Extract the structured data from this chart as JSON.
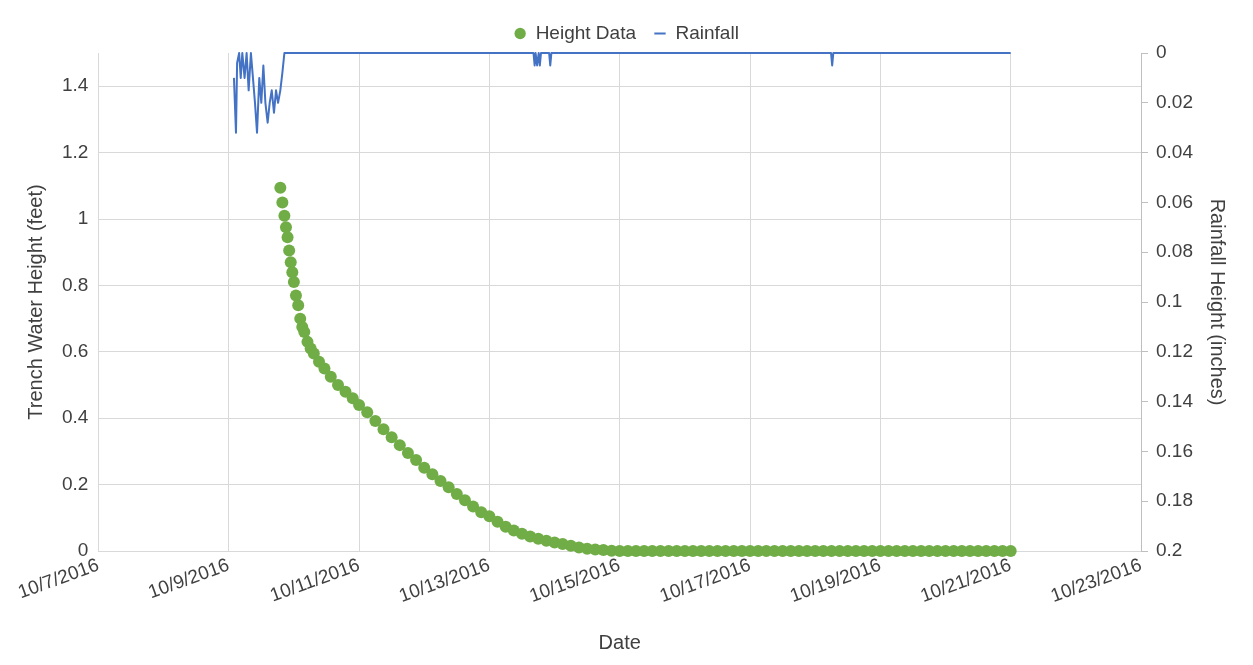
{
  "chart_data": {
    "type": "scatter",
    "xlabel": "Date",
    "ylabel": "Trench Water Height (feet)",
    "y2label": "Rainfall Height (inches)",
    "legend": "top",
    "grid": true,
    "xlim": [
      "2016-10-07",
      "2016-10-23"
    ],
    "xticks": [
      {
        "value": "2016-10-07",
        "label": "10/7/2016"
      },
      {
        "value": "2016-10-09",
        "label": "10/9/2016"
      },
      {
        "value": "2016-10-11",
        "label": "10/11/2016"
      },
      {
        "value": "2016-10-13",
        "label": "10/13/2016"
      },
      {
        "value": "2016-10-15",
        "label": "10/15/2016"
      },
      {
        "value": "2016-10-17",
        "label": "10/17/2016"
      },
      {
        "value": "2016-10-19",
        "label": "10/19/2016"
      },
      {
        "value": "2016-10-21",
        "label": "10/21/2016"
      },
      {
        "value": "2016-10-23",
        "label": "10/23/2016"
      }
    ],
    "ylim": [
      0,
      1.5
    ],
    "yticks": [
      0,
      0.2,
      0.4,
      0.6,
      0.8,
      1,
      1.2,
      1.4
    ],
    "y2lim": [
      0.2,
      0
    ],
    "y2ticks": [
      0,
      0.02,
      0.04,
      0.06,
      0.08,
      0.1,
      0.12,
      0.14,
      0.16,
      0.18,
      0.2
    ],
    "series": [
      {
        "name": "Height Data",
        "marker": "circle",
        "color": "#70ad47",
        "x": [
          "2016-10-09T19:00",
          "2016-10-09T19:45",
          "2016-10-09T20:30",
          "2016-10-09T21:05",
          "2016-10-09T21:40",
          "2016-10-09T22:15",
          "2016-10-09T22:50",
          "2016-10-09T23:25",
          "2016-10-10T00:00",
          "2016-10-10T00:45",
          "2016-10-10T01:35",
          "2016-10-10T02:20",
          "2016-10-10T03:05",
          "2016-10-10T03:50",
          "2016-10-10T05:00",
          "2016-10-10T06:10",
          "2016-10-10T07:20",
          "2016-10-10T09:15",
          "2016-10-10T11:15",
          "2016-10-10T13:35",
          "2016-10-10T16:15",
          "2016-10-10T19:00",
          "2016-10-10T21:40",
          "2016-10-11T00:00",
          "2016-10-11T03:00",
          "2016-10-11T06:00",
          "2016-10-11T09:00",
          "2016-10-11T12:00",
          "2016-10-11T15:00",
          "2016-10-11T18:00",
          "2016-10-11T21:00",
          "2016-10-12T00:00",
          "2016-10-12T03:00",
          "2016-10-12T06:00",
          "2016-10-12T09:00",
          "2016-10-12T12:00",
          "2016-10-12T15:00",
          "2016-10-12T18:00",
          "2016-10-12T21:00",
          "2016-10-13T00:00",
          "2016-10-13T03:00",
          "2016-10-13T06:00",
          "2016-10-13T09:00",
          "2016-10-13T12:00",
          "2016-10-13T15:00",
          "2016-10-13T18:00",
          "2016-10-13T21:00",
          "2016-10-14T00:00",
          "2016-10-14T03:00",
          "2016-10-14T06:00",
          "2016-10-14T09:00",
          "2016-10-14T12:00",
          "2016-10-14T15:00",
          "2016-10-14T18:00",
          "2016-10-14T21:00",
          "2016-10-15T00:00",
          "2016-10-15T03:00",
          "2016-10-15T06:00",
          "2016-10-15T09:00",
          "2016-10-15T12:00",
          "2016-10-15T15:00",
          "2016-10-15T18:00",
          "2016-10-15T21:00",
          "2016-10-16T00:00",
          "2016-10-16T03:00",
          "2016-10-16T06:00",
          "2016-10-16T09:00",
          "2016-10-16T12:00",
          "2016-10-16T15:00",
          "2016-10-16T18:00",
          "2016-10-16T21:00",
          "2016-10-17T00:00",
          "2016-10-17T03:00",
          "2016-10-17T06:00",
          "2016-10-17T09:00",
          "2016-10-17T12:00",
          "2016-10-17T15:00",
          "2016-10-17T18:00",
          "2016-10-17T21:00",
          "2016-10-18T00:00",
          "2016-10-18T03:00",
          "2016-10-18T06:00",
          "2016-10-18T09:00",
          "2016-10-18T12:00",
          "2016-10-18T15:00",
          "2016-10-18T18:00",
          "2016-10-18T21:00",
          "2016-10-19T00:00",
          "2016-10-19T03:00",
          "2016-10-19T06:00",
          "2016-10-19T09:00",
          "2016-10-19T12:00",
          "2016-10-19T15:00",
          "2016-10-19T18:00",
          "2016-10-19T21:00",
          "2016-10-20T00:00",
          "2016-10-20T03:00",
          "2016-10-20T06:00",
          "2016-10-20T09:00",
          "2016-10-20T12:00",
          "2016-10-20T15:00",
          "2016-10-20T18:00",
          "2016-10-20T21:00",
          "2016-10-21T00:00"
        ],
        "values": [
          1.094,
          1.05,
          1.01,
          0.975,
          0.945,
          0.905,
          0.87,
          0.84,
          0.81,
          0.77,
          0.74,
          0.7,
          0.675,
          0.66,
          0.63,
          0.61,
          0.595,
          0.57,
          0.55,
          0.525,
          0.5,
          0.48,
          0.46,
          0.44,
          0.418,
          0.392,
          0.367,
          0.343,
          0.319,
          0.295,
          0.274,
          0.251,
          0.231,
          0.211,
          0.192,
          0.172,
          0.153,
          0.134,
          0.117,
          0.105,
          0.088,
          0.073,
          0.062,
          0.052,
          0.044,
          0.037,
          0.031,
          0.026,
          0.021,
          0.016,
          0.011,
          0.007,
          0.005,
          0.003,
          0.001,
          0,
          0,
          0,
          0,
          0,
          0,
          0,
          0,
          0,
          0,
          0,
          0,
          0,
          0,
          0,
          0,
          0,
          0,
          0,
          0,
          0,
          0,
          0,
          0,
          0,
          0,
          0,
          0,
          0,
          0,
          0,
          0,
          0,
          0,
          0,
          0,
          0,
          0,
          0,
          0,
          0,
          0,
          0,
          0,
          0,
          0,
          0,
          0,
          0
        ]
      },
      {
        "name": "Rainfall",
        "type": "line",
        "axis": "y2",
        "marker": "none",
        "color": "#4472c4",
        "x": [
          "2016-10-09T01:55",
          "2016-10-09T02:40",
          "2016-10-09T03:05",
          "2016-10-09T03:50",
          "2016-10-09T04:25",
          "2016-10-09T05:00",
          "2016-10-09T05:50",
          "2016-10-09T06:35",
          "2016-10-09T07:20",
          "2016-10-09T08:10",
          "2016-10-09T08:55",
          "2016-10-09T09:40",
          "2016-10-09T10:25",
          "2016-10-09T11:15",
          "2016-10-09T12:00",
          "2016-10-09T12:45",
          "2016-10-09T13:30",
          "2016-10-09T14:20",
          "2016-10-09T15:05",
          "2016-10-09T15:50",
          "2016-10-09T16:40",
          "2016-10-09T17:25",
          "2016-10-09T18:10",
          "2016-10-09T19:00",
          "2016-10-09T19:45",
          "2016-10-09T20:30",
          "2016-10-13T16:15",
          "2016-10-13T16:40",
          "2016-10-13T17:00",
          "2016-10-13T17:35",
          "2016-10-13T18:10",
          "2016-10-13T18:35",
          "2016-10-13T19:00",
          "2016-10-13T22:00",
          "2016-10-13T22:25",
          "2016-10-13T22:50",
          "2016-10-18T05:50",
          "2016-10-18T06:15",
          "2016-10-18T06:40",
          "2016-10-21T00:00"
        ],
        "values": [
          0.01,
          0.032,
          0.004,
          0,
          0.01,
          0,
          0.01,
          0,
          0.015,
          0,
          0.01,
          0.02,
          0.032,
          0.01,
          0.02,
          0.005,
          0.02,
          0.028,
          0.02,
          0.015,
          0.024,
          0.015,
          0.02,
          0.015,
          0.008,
          0,
          0,
          0.005,
          0,
          0.005,
          0,
          0.005,
          0,
          0,
          0.005,
          0,
          0,
          0.005,
          0,
          0
        ]
      }
    ]
  }
}
